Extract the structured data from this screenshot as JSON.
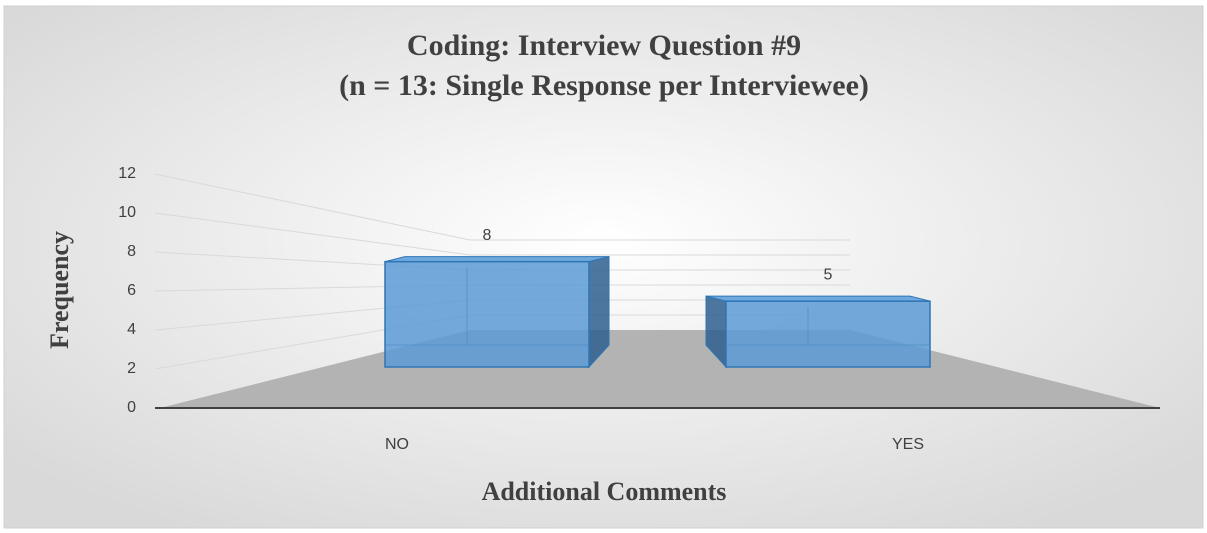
{
  "chart_data": {
    "type": "bar3d",
    "title": [
      "Coding: Interview Question #9",
      "(n = 13: Single Response per Interviewee)"
    ],
    "x_label": "Additional Comments",
    "y_label": "Frequency",
    "categories": [
      "NO",
      "YES"
    ],
    "values": [
      8,
      5
    ],
    "color": "#5b9bd5",
    "ylim": [
      0,
      12
    ],
    "yticks": [
      0,
      2,
      4,
      6,
      8,
      10,
      12
    ],
    "grid": true
  }
}
